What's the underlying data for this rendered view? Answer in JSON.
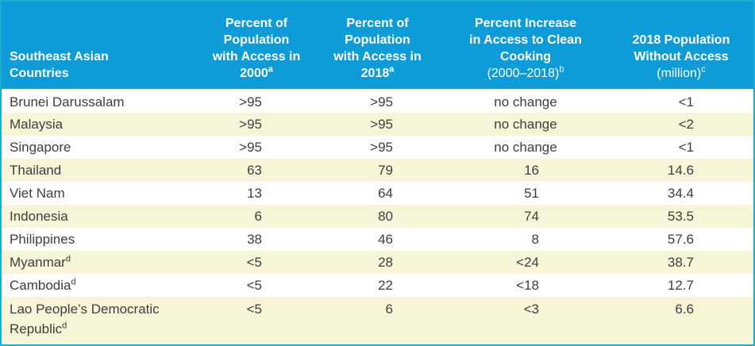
{
  "colors": {
    "header_bg": "#0e9cd9",
    "border": "#1badd2",
    "row_alt": "#f7f5d8",
    "row_white": "#ffffff",
    "body_text": "#3e3e3e",
    "header_text": "#ffffff",
    "header_sep": "#f3f1df"
  },
  "header": {
    "col1": {
      "bold": "Southeast Asian\nCountries",
      "bold_sup": "",
      "reg": "",
      "reg_sup": ""
    },
    "col2": {
      "bold": "Percent of\nPopulation\nwith Access in\n2000",
      "bold_sup": "a",
      "reg": "",
      "reg_sup": ""
    },
    "col3": {
      "bold": "Percent of\nPopulation\nwith Access in\n2018",
      "bold_sup": "a",
      "reg": "",
      "reg_sup": ""
    },
    "col4": {
      "bold": "Percent Increase\nin Access to Clean\nCooking",
      "bold_sup": "",
      "reg": "\n(2000–2018)",
      "reg_sup": "b"
    },
    "col5": {
      "bold": "2018 Population\nWithout Access",
      "bold_sup": "",
      "reg": "\n(million)",
      "reg_sup": "c"
    }
  },
  "rows": [
    {
      "country": "Brunei Darussalam",
      "country_sup": "",
      "access_2000": ">95",
      "access_2018": ">95",
      "increase": "no change",
      "population": "<1"
    },
    {
      "country": "Malaysia",
      "country_sup": "",
      "access_2000": ">95",
      "access_2018": ">95",
      "increase": "no change",
      "population": "<2"
    },
    {
      "country": "Singapore",
      "country_sup": "",
      "access_2000": ">95",
      "access_2018": ">95",
      "increase": "no change",
      "population": "<1"
    },
    {
      "country": "Thailand",
      "country_sup": "",
      "access_2000": "63",
      "access_2018": "79",
      "increase": "16",
      "population": "14.6"
    },
    {
      "country": "Viet Nam",
      "country_sup": "",
      "access_2000": "13",
      "access_2018": "64",
      "increase": "51",
      "population": "34.4"
    },
    {
      "country": "Indonesia",
      "country_sup": "",
      "access_2000": "6",
      "access_2018": "80",
      "increase": "74",
      "population": "53.5"
    },
    {
      "country": "Philippines",
      "country_sup": "",
      "access_2000": "38",
      "access_2018": "46",
      "increase": "8",
      "population": "57.6"
    },
    {
      "country": "Myanmar",
      "country_sup": "d",
      "access_2000": "<5",
      "access_2018": "28",
      "increase": "<24",
      "population": "38.7"
    },
    {
      "country": "Cambodia",
      "country_sup": "d",
      "access_2000": "<5",
      "access_2018": "22",
      "increase": "<18",
      "population": "12.7"
    },
    {
      "country": "Lao People’s Democratic Republic",
      "country_sup": "d",
      "access_2000": "<5",
      "access_2018": "6",
      "increase": "<3",
      "population": "6.6"
    }
  ]
}
